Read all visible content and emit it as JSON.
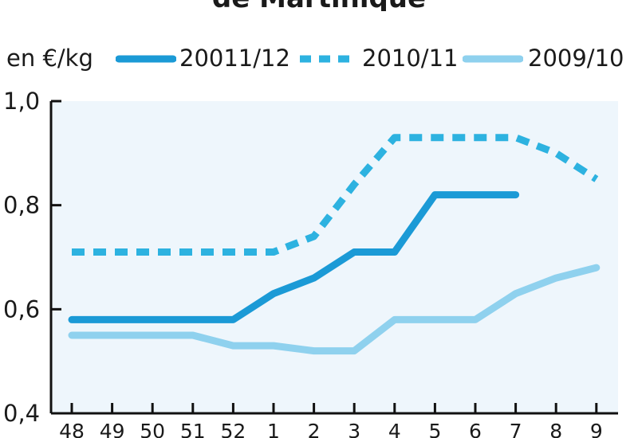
{
  "chart_data": {
    "type": "line",
    "title": "de Martinique",
    "unit_label": "en €/kg",
    "categories": [
      "48",
      "49",
      "50",
      "51",
      "52",
      "1",
      "2",
      "3",
      "4",
      "5",
      "6",
      "7",
      "8",
      "9"
    ],
    "ylim": [
      0.4,
      1.0
    ],
    "yticks": [
      "0,4",
      "0,6",
      "0,8",
      "1,0"
    ],
    "ytick_values": [
      0.4,
      0.6,
      0.8,
      1.0
    ],
    "grid": false,
    "legend_position": "top",
    "series": [
      {
        "name": "20011/12",
        "color": "#1b9ad6",
        "style": "solid",
        "values": [
          0.58,
          0.58,
          0.58,
          0.58,
          0.58,
          0.63,
          0.66,
          0.71,
          0.71,
          0.82,
          0.82,
          0.82,
          null,
          null
        ]
      },
      {
        "name": "2010/11",
        "color": "#2db2e0",
        "style": "dashed",
        "values": [
          0.71,
          0.71,
          0.71,
          0.71,
          0.71,
          0.71,
          0.74,
          0.84,
          0.93,
          0.93,
          0.93,
          0.93,
          0.9,
          0.85
        ]
      },
      {
        "name": "2009/10",
        "color": "#8fd1ee",
        "style": "solid",
        "values": [
          0.55,
          0.55,
          0.55,
          0.55,
          0.53,
          0.53,
          0.52,
          0.52,
          0.58,
          0.58,
          0.58,
          0.63,
          0.66,
          0.68
        ]
      }
    ]
  },
  "colors": {
    "plot_background": "#eef6fc",
    "axis": "#111111"
  }
}
